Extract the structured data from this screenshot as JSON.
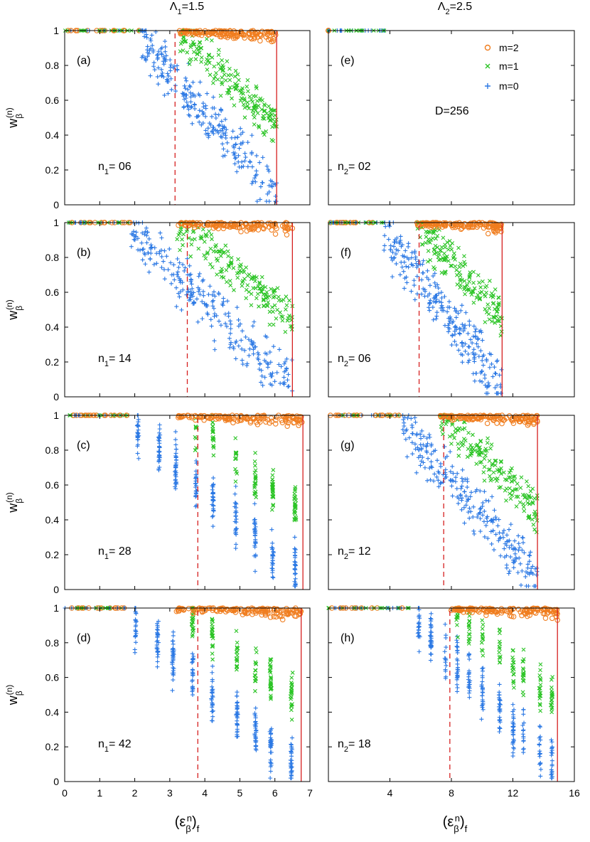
{
  "colors": {
    "m2": "#f07d1e",
    "m1": "#2bc425",
    "m0": "#2b78e4",
    "ref": "#d62020",
    "axis": "#000000"
  },
  "headers": {
    "left": {
      "sym": "Λ",
      "sub": "1",
      "val": "=1.5"
    },
    "right": {
      "sym": "Λ",
      "sub": "2",
      "val": "=2.5"
    }
  },
  "ylabel": {
    "base": "w",
    "sub": "β",
    "sup": "(n)"
  },
  "xlabel": {
    "open": "(ε",
    "sub": "β",
    "sup": "n",
    "close": ")",
    "sub2": "f"
  },
  "legend": [
    {
      "label": "m=2",
      "marker": "circle",
      "color": "#f07d1e"
    },
    {
      "label": "m=1",
      "marker": "x",
      "color": "#2bc425"
    },
    {
      "label": "m=0",
      "marker": "plus",
      "color": "#2b78e4"
    }
  ],
  "d_label": "D=256",
  "chart_data": [
    {
      "id": "a",
      "tag": "(a)",
      "col": 0,
      "row": 0,
      "n_pre": "n",
      "n_sub": "1",
      "n_post": "= 06",
      "type": "scatter",
      "xlim": [
        0,
        7
      ],
      "ylim": [
        0,
        1
      ],
      "dashed_x": 3.15,
      "solid_x": 6.05,
      "x_onset": 2.2
    },
    {
      "id": "b",
      "tag": "(b)",
      "col": 0,
      "row": 1,
      "n_pre": "n",
      "n_sub": "1",
      "n_post": "= 14",
      "type": "scatter",
      "xlim": [
        0,
        7
      ],
      "ylim": [
        0,
        1
      ],
      "dashed_x": 3.5,
      "solid_x": 6.5,
      "x_onset": 1.9
    },
    {
      "id": "c",
      "tag": "(c)",
      "col": 0,
      "row": 2,
      "n_pre": "n",
      "n_sub": "1",
      "n_post": "= 28",
      "type": "scatter",
      "xlim": [
        0,
        7
      ],
      "ylim": [
        0,
        1
      ],
      "dashed_x": 3.8,
      "solid_x": 6.8,
      "x_onset": 1.8
    },
    {
      "id": "d",
      "tag": "(d)",
      "col": 0,
      "row": 3,
      "n_pre": "n",
      "n_sub": "1",
      "n_post": "= 42",
      "type": "scatter",
      "xlim": [
        0,
        7
      ],
      "ylim": [
        0,
        1
      ],
      "dashed_x": 3.8,
      "solid_x": 6.75,
      "x_onset": 1.8
    },
    {
      "id": "e",
      "tag": "(e)",
      "col": 1,
      "row": 0,
      "n_pre": "n",
      "n_sub": "2",
      "n_post": "= 02",
      "type": "scatter",
      "xlim": [
        0,
        16
      ],
      "ylim": [
        0,
        1
      ],
      "dashed_x": null,
      "solid_x": null,
      "x_onset": null
    },
    {
      "id": "f",
      "tag": "(f)",
      "col": 1,
      "row": 1,
      "n_pre": "n",
      "n_sub": "2",
      "n_post": "= 06",
      "type": "scatter",
      "xlim": [
        0,
        16
      ],
      "ylim": [
        0,
        1
      ],
      "dashed_x": 5.9,
      "solid_x": 11.3,
      "x_onset": 3.6
    },
    {
      "id": "g",
      "tag": "(g)",
      "col": 1,
      "row": 2,
      "n_pre": "n",
      "n_sub": "2",
      "n_post": "= 12",
      "type": "scatter",
      "xlim": [
        0,
        16
      ],
      "ylim": [
        0,
        1
      ],
      "dashed_x": 7.5,
      "solid_x": 13.6,
      "x_onset": 4.8
    },
    {
      "id": "h",
      "tag": "(h)",
      "col": 1,
      "row": 3,
      "n_pre": "n",
      "n_sub": "2",
      "n_post": "= 18",
      "type": "scatter",
      "xlim": [
        0,
        16
      ],
      "ylim": [
        0,
        1
      ],
      "dashed_x": 7.9,
      "solid_x": 14.9,
      "x_onset": 5.3
    }
  ],
  "y_ticks": [
    "0",
    "0.2",
    "0.4",
    "0.6",
    "0.8",
    "1"
  ],
  "x_ticks_left": [
    "0",
    "1",
    "2",
    "3",
    "4",
    "5",
    "6",
    "7"
  ],
  "x_ticks_right": [
    "4",
    "8",
    "12",
    "16"
  ]
}
